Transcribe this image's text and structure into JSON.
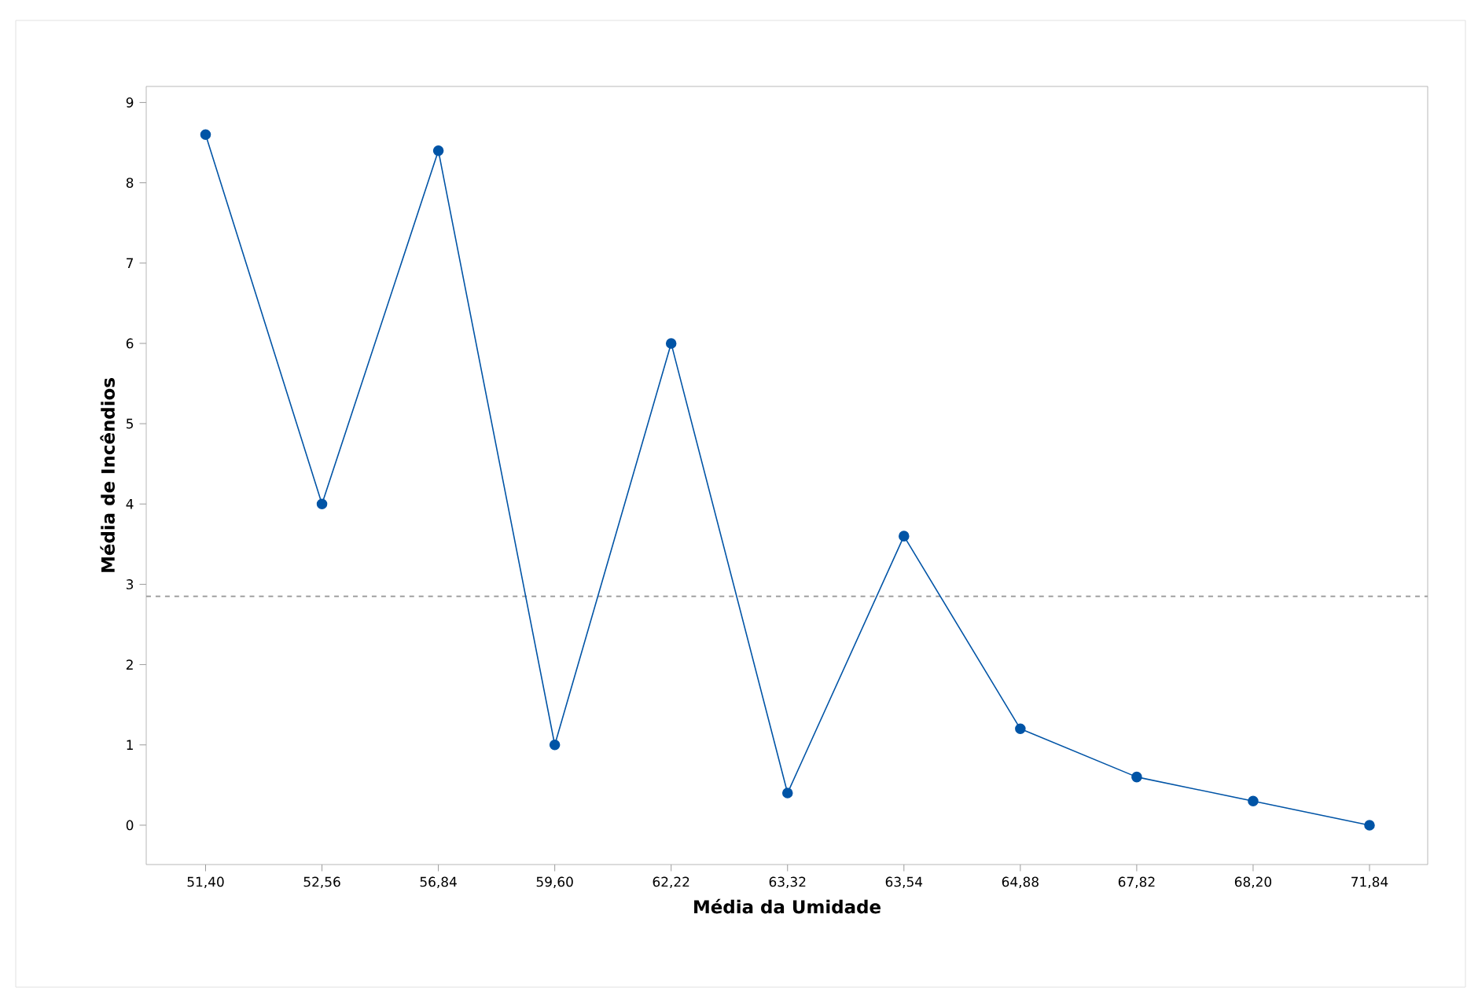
{
  "chart_data": {
    "type": "line",
    "xlabel": "Média da Umidade",
    "ylabel": "Média de Incêndios",
    "categories": [
      "51,40",
      "52,56",
      "56,84",
      "59,60",
      "62,22",
      "63,32",
      "63,54",
      "64,88",
      "67,82",
      "68,20",
      "71,84"
    ],
    "series": [
      {
        "color": "#0054a6",
        "values": [
          8.6,
          4.0,
          8.4,
          1.0,
          6.0,
          0.4,
          3.6,
          1.2,
          0.6,
          0.3,
          0.0
        ]
      }
    ],
    "ylim": [
      -0.49,
      9.2
    ],
    "yticks": [
      0,
      1,
      2,
      3,
      4,
      5,
      6,
      7,
      8,
      9
    ],
    "ref_lines": [
      {
        "axis": "y",
        "value": 2.85,
        "color": "#a0a0a0",
        "line_style": "dashed"
      }
    ],
    "marker": "circle",
    "line_style": "solid"
  }
}
